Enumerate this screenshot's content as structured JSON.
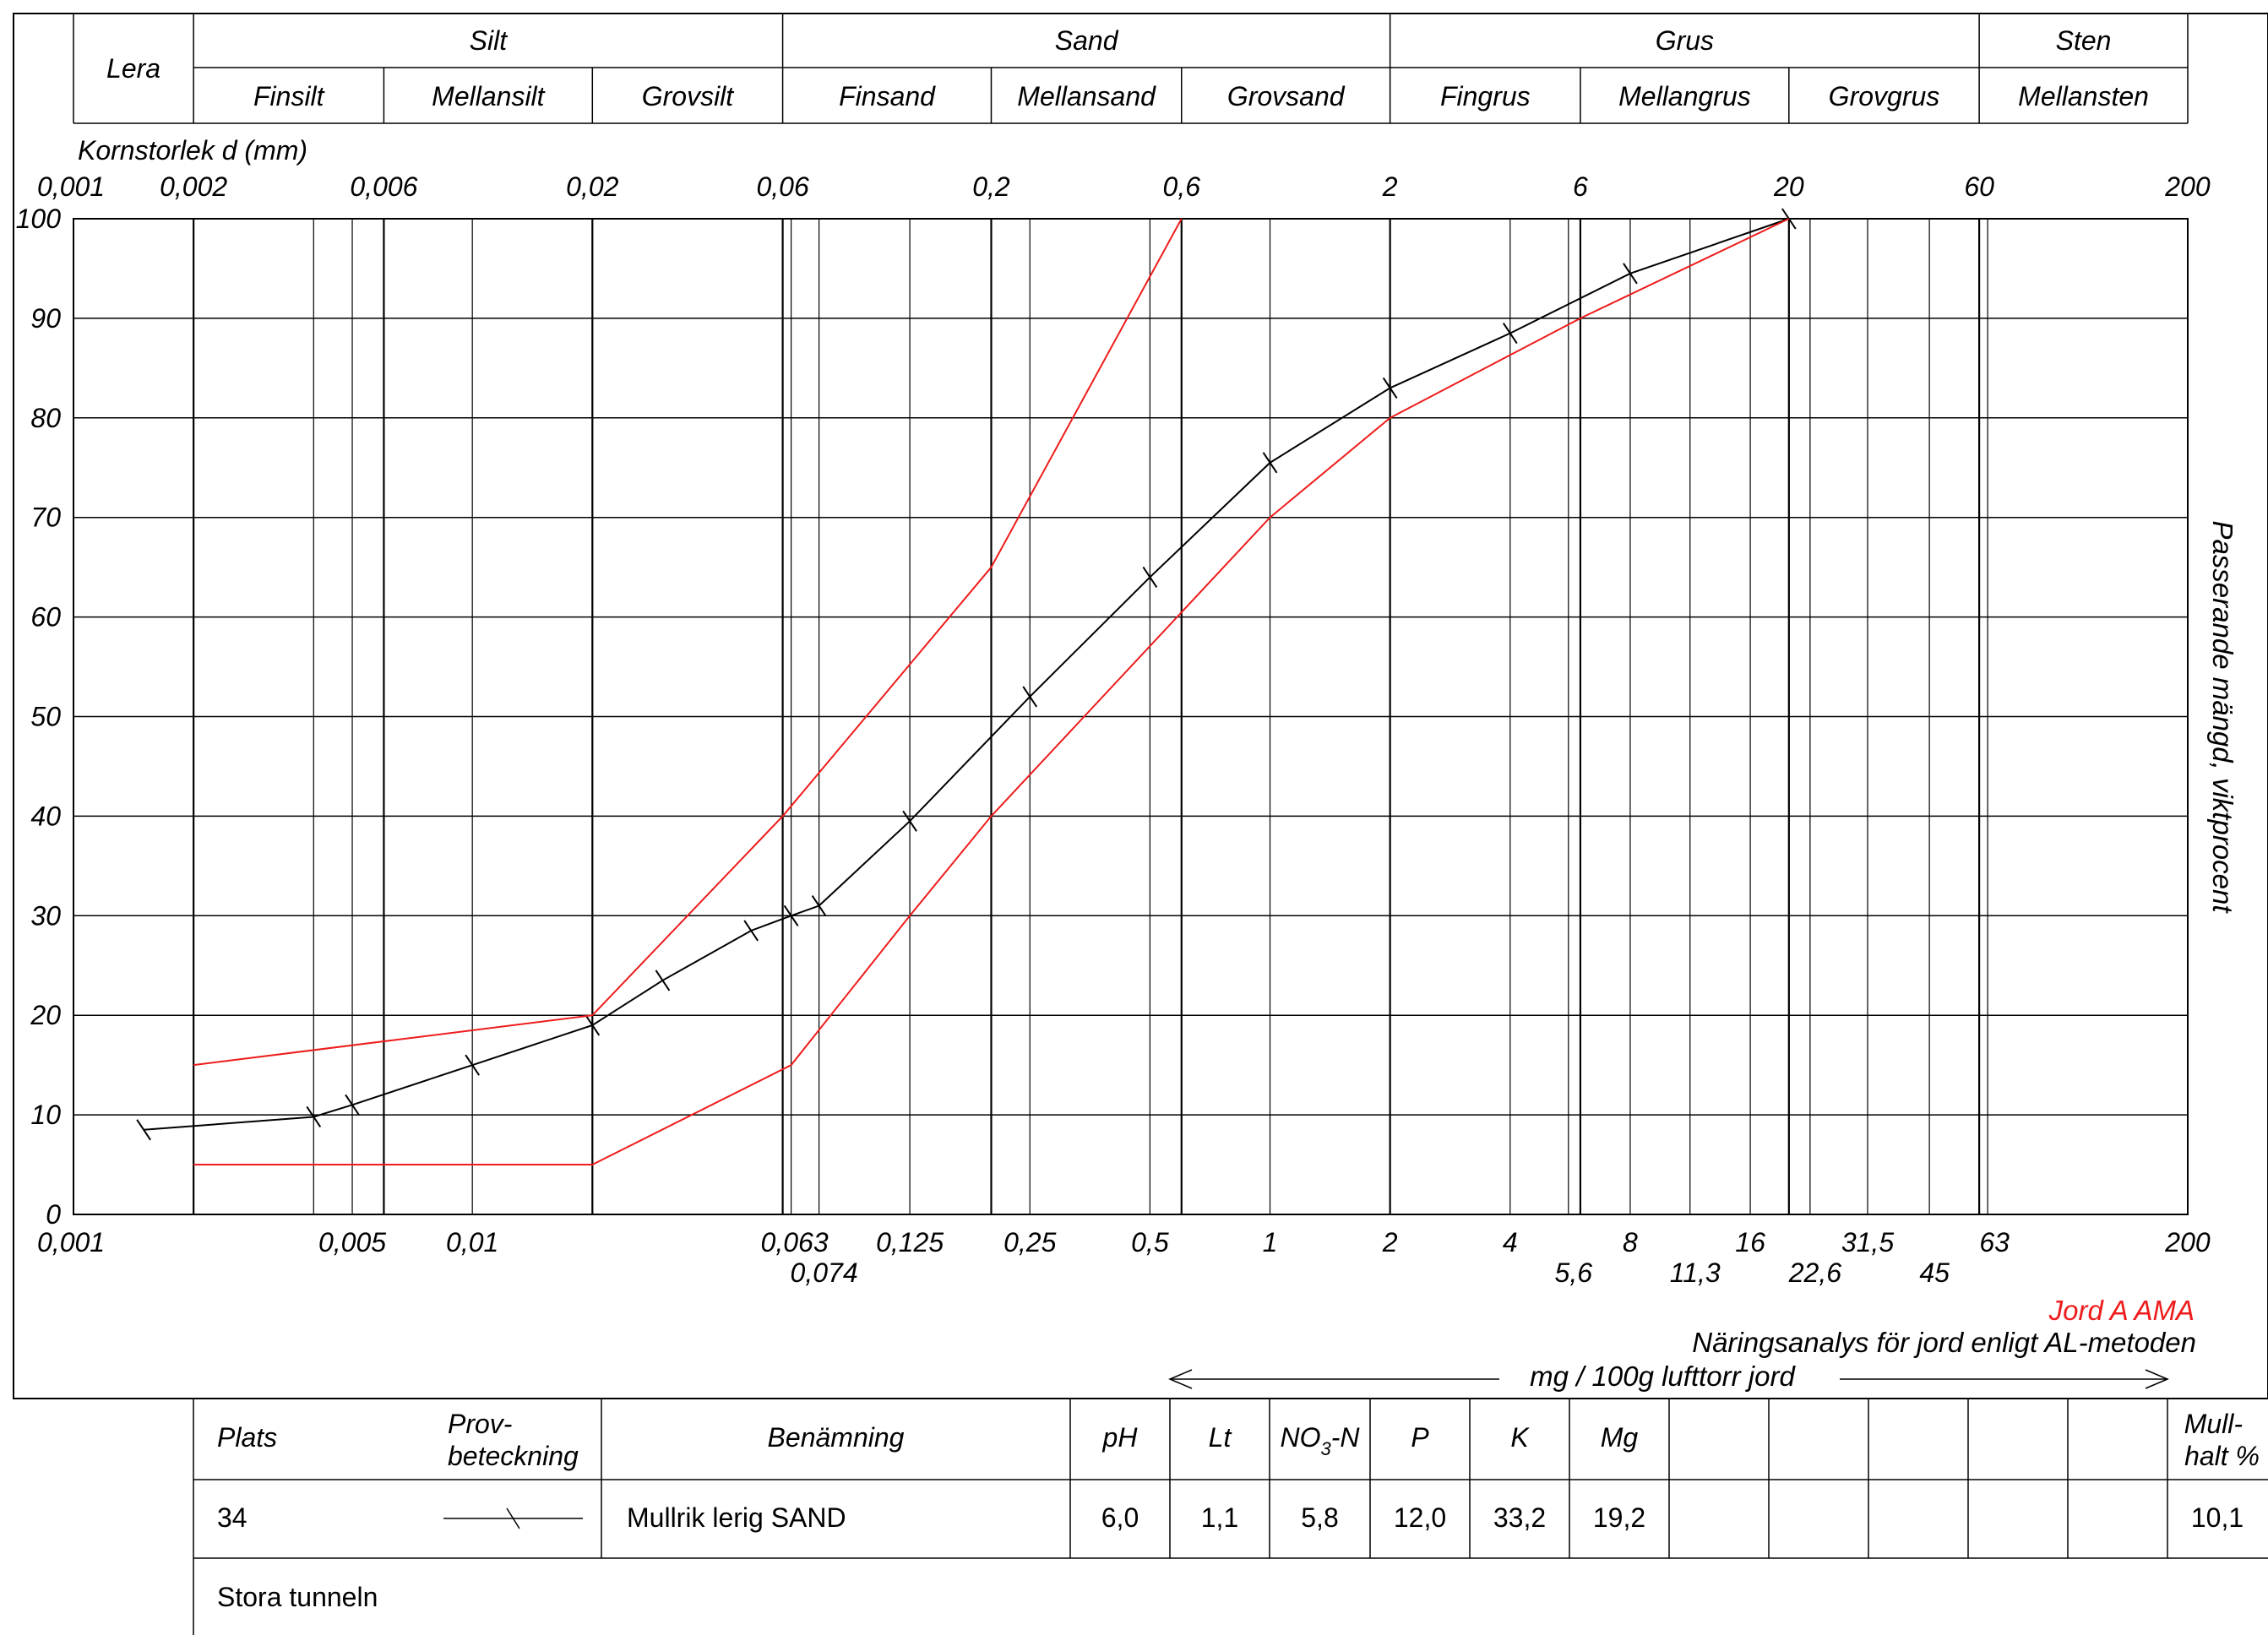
{
  "header": {
    "lera": "Lera",
    "groups": [
      {
        "label": "Silt",
        "subs": [
          "Finsilt",
          "Mellansilt",
          "Grovsilt"
        ]
      },
      {
        "label": "Sand",
        "subs": [
          "Finsand",
          "Mellansand",
          "Grovsand"
        ]
      },
      {
        "label": "Grus",
        "subs": [
          "Fingrus",
          "Mellangrus",
          "Grovgrus"
        ]
      },
      {
        "label": "Sten",
        "subs": [
          "Mellansten"
        ]
      }
    ]
  },
  "axis_title": "Kornstorlek d (mm)",
  "y_title": "Passerande mängd, viktprocent",
  "top_ticks": [
    "0,001",
    "0,002",
    "0,006",
    "0,02",
    "0,06",
    "0,2",
    "0,6",
    "2",
    "6",
    "20",
    "60",
    "200"
  ],
  "bottom_ticks_row1": [
    "0,001",
    "0,005",
    "0,01",
    "0,063",
    "0,125",
    "0,25",
    "0,5",
    "1",
    "2",
    "4",
    "8",
    "16",
    "31,5",
    "63",
    "200"
  ],
  "bottom_ticks_row2": [
    "0,074",
    "5,6",
    "11,3",
    "22,6",
    "45"
  ],
  "y_ticks": [
    "0",
    "10",
    "20",
    "30",
    "40",
    "50",
    "60",
    "70",
    "80",
    "90",
    "100"
  ],
  "legend_red": "Jord A AMA",
  "analysis_title": "Näringsanalys för jord enligt AL-metoden",
  "unit_label": "mg / 100g lufttorr jord",
  "colors": {
    "sample": "#000000",
    "envelope": "#ee1c1c",
    "grid": "#000000"
  },
  "table": {
    "headers": {
      "plats": "Plats",
      "prov_line1": "Prov-",
      "prov_line2": "beteckning",
      "benamning": "Benämning",
      "ph": "pH",
      "lt": "Lt",
      "no3_a": "NO",
      "no3_sub": "3",
      "no3_b": "-N",
      "p": "P",
      "k": "K",
      "mg": "Mg",
      "mull_line1": "Mull-",
      "mull_line2": "halt %"
    },
    "row": {
      "plats": "34",
      "benamning": "Mullrik lerig SAND",
      "ph": "6,0",
      "lt": "1,1",
      "no3": "5,8",
      "p": "12,0",
      "k": "33,2",
      "mg": "19,2",
      "mull": "10,1"
    },
    "footer": "Stora tunneln"
  },
  "chart_data": {
    "type": "line",
    "xscale": "log",
    "xlabel": "Kornstorlek d (mm)",
    "ylabel": "Passerande mängd, viktprocent",
    "xlim": [
      0.001,
      200
    ],
    "ylim": [
      0,
      100
    ],
    "grid": true,
    "series": [
      {
        "name": "34",
        "color": "#000000",
        "markers": true,
        "points": [
          [
            0.0015,
            8.5
          ],
          [
            0.004,
            9.8
          ],
          [
            0.005,
            11
          ],
          [
            0.01,
            15
          ],
          [
            0.02,
            19
          ],
          [
            0.03,
            23.5
          ],
          [
            0.05,
            28.5
          ],
          [
            0.063,
            30
          ],
          [
            0.074,
            31
          ],
          [
            0.125,
            39.5
          ],
          [
            0.25,
            52
          ],
          [
            0.5,
            64
          ],
          [
            1,
            75.5
          ],
          [
            2,
            83
          ],
          [
            4,
            88.5
          ],
          [
            8,
            94.5
          ],
          [
            20,
            100
          ]
        ]
      },
      {
        "name": "Jord A AMA",
        "color": "#ee1c1c",
        "markers": false,
        "points": [
          [
            0.002,
            15
          ],
          [
            0.02,
            20
          ],
          [
            0.06,
            40
          ],
          [
            0.2,
            65
          ],
          [
            0.6,
            100
          ]
        ]
      },
      {
        "name": "Jord A AMA",
        "color": "#ee1c1c",
        "markers": false,
        "points": [
          [
            0.002,
            5
          ],
          [
            0.02,
            5
          ],
          [
            0.063,
            15
          ],
          [
            0.125,
            30
          ],
          [
            0.2,
            40
          ],
          [
            1,
            70
          ],
          [
            2,
            80
          ],
          [
            6,
            90
          ],
          [
            20,
            100
          ]
        ]
      }
    ]
  }
}
